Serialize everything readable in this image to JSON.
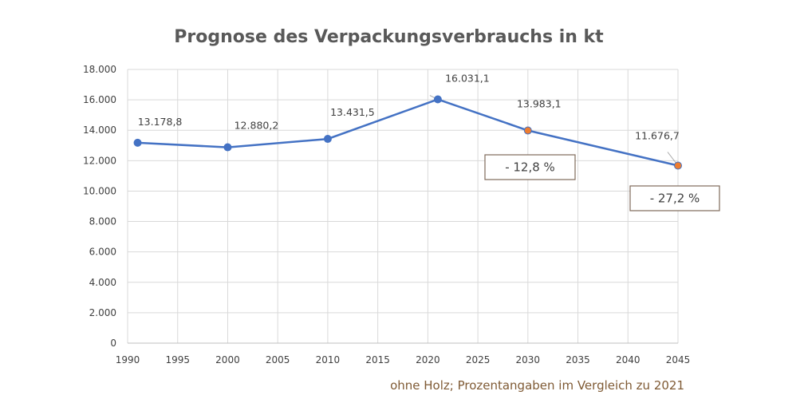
{
  "chart_data": {
    "type": "line",
    "title": "Prognose des Verpackungsverbrauchs in kt",
    "xlabel": "",
    "ylabel": "",
    "xlim": [
      1990,
      2045
    ],
    "ylim": [
      0,
      18000
    ],
    "x_ticks": [
      "1990",
      "1995",
      "2000",
      "2005",
      "2010",
      "2015",
      "2020",
      "2025",
      "2030",
      "2035",
      "2040",
      "2045"
    ],
    "y_ticks": [
      "0",
      "2.000",
      "4.000",
      "6.000",
      "8.000",
      "10.000",
      "12.000",
      "14.000",
      "16.000",
      "18.000"
    ],
    "grid": true,
    "series": [
      {
        "x": [
          1991,
          2000,
          2010,
          2021,
          2030,
          2045
        ],
        "y": [
          13178.8,
          12880.2,
          13431.5,
          16031.1,
          13983.1,
          11676.7
        ],
        "labels": [
          "13.178,8",
          "12.880,2",
          "13.431,5",
          "16.031,1",
          "13.983,1",
          "11.676,7"
        ],
        "marker_colors": [
          "#4472c4",
          "#4472c4",
          "#4472c4",
          "#4472c4",
          "#ed7d31",
          "#ed7d31"
        ]
      }
    ],
    "line_color": "#4472c4",
    "annotations": [
      {
        "text": "- 12,8 %",
        "x": 2030
      },
      {
        "text": "- 27,2 %",
        "x": 2045
      }
    ],
    "footnote": "ohne Holz; Prozentangaben im Vergleich zu 2021"
  }
}
